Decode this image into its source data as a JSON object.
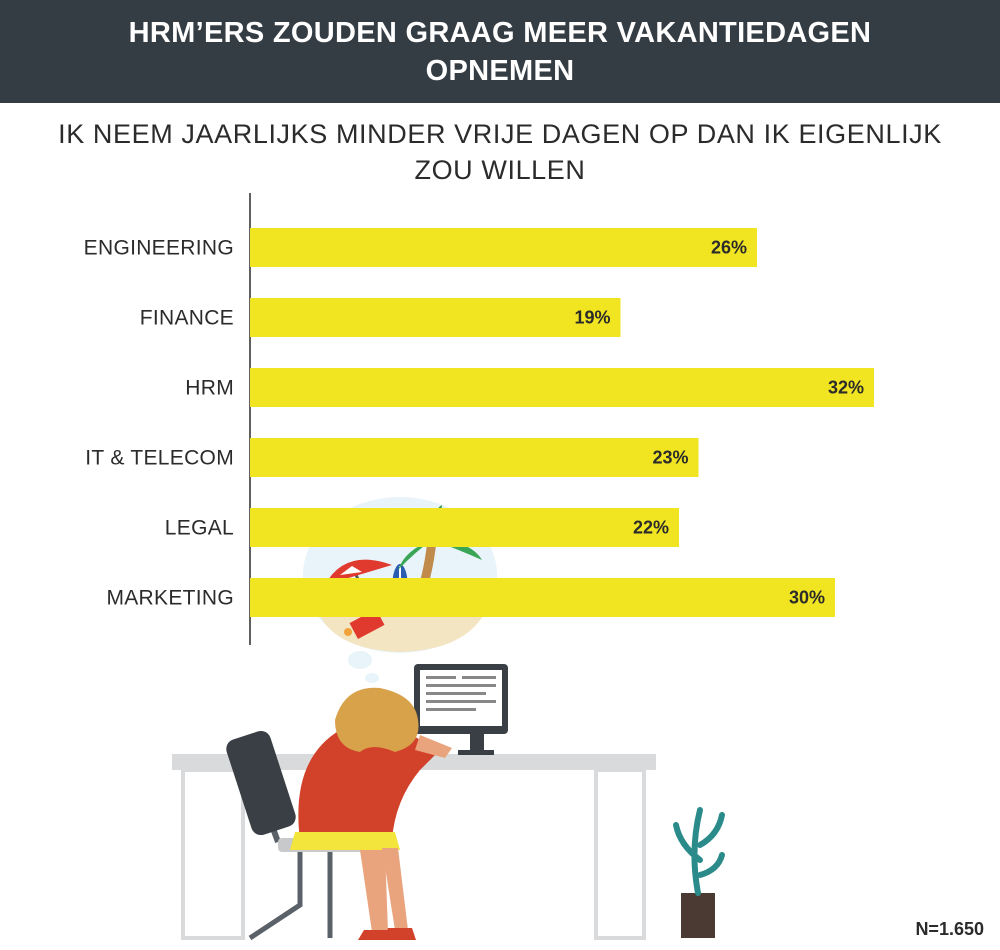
{
  "header": {
    "title": "HRM’ERS ZOUDEN GRAAG MEER VAKANTIEDAGEN OPNEMEN"
  },
  "chart_data": {
    "type": "bar",
    "orientation": "horizontal",
    "title": "IK NEEM JAARLIJKS MINDER VRIJE DAGEN OP DAN IK EIGENLIJK ZOU WILLEN",
    "categories": [
      "ENGINEERING",
      "FINANCE",
      "HRM",
      "IT & TELECOM",
      "LEGAL",
      "MARKETING"
    ],
    "values": [
      26,
      19,
      32,
      23,
      22,
      30
    ],
    "value_labels": [
      "26%",
      "19%",
      "32%",
      "23%",
      "22%",
      "30%"
    ],
    "unit": "%",
    "xlim": [
      0,
      32
    ],
    "grid": false,
    "bar_color": "#f1e521"
  },
  "footnote": "N=1.650",
  "illustration": "woman-at-desk-dreaming-of-beach-icon",
  "colors": {
    "header_bg": "#353d44",
    "bar": "#f1e521",
    "text": "#2b2b2b"
  }
}
